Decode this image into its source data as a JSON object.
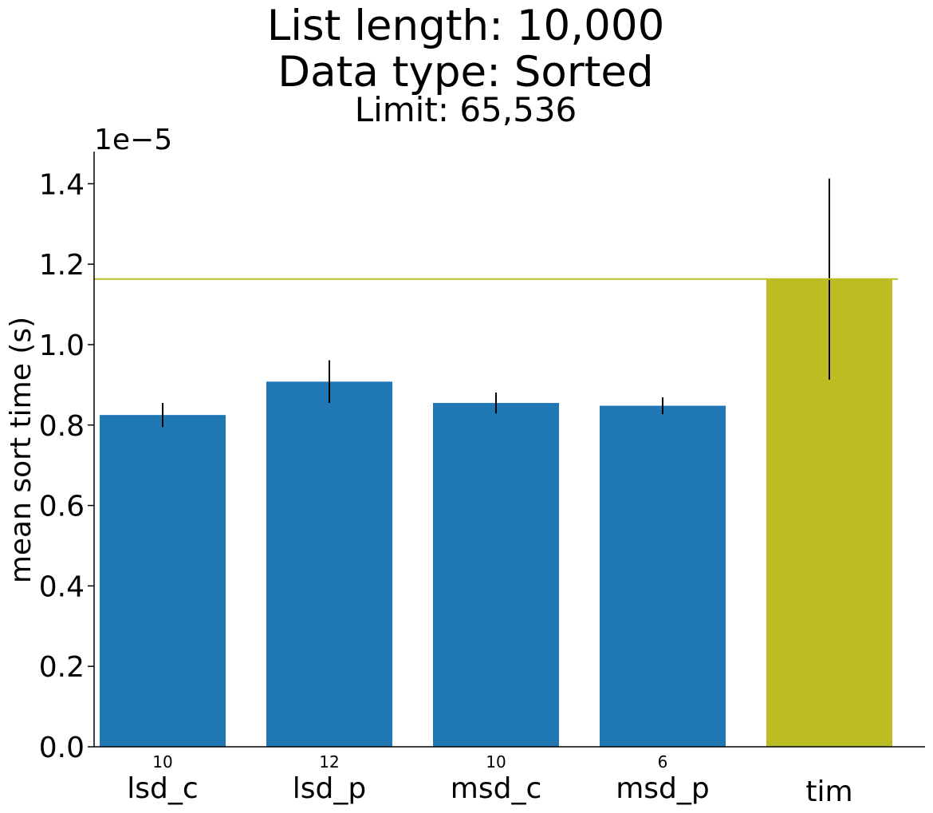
{
  "chart_data": {
    "type": "bar",
    "title_lines": [
      "List length: 10,000",
      "Data type: Sorted"
    ],
    "subtitle": "Limit: 65,536",
    "ylabel": "mean sort time (s)",
    "xlabel": "",
    "y_offset_label": "1e−5",
    "y_multiplier": 1e-05,
    "ylim": [
      0,
      1.48
    ],
    "yticks": [
      0.0,
      0.2,
      0.4,
      0.6,
      0.8,
      1.0,
      1.2,
      1.4
    ],
    "ytick_labels": [
      "0.0",
      "0.2",
      "0.4",
      "0.6",
      "0.8",
      "1.0",
      "1.2",
      "1.4"
    ],
    "categories": [
      "lsd_c",
      "lsd_p",
      "msd_c",
      "msd_p",
      "tim"
    ],
    "values": [
      0.825,
      0.908,
      0.855,
      0.848,
      1.163
    ],
    "errors": [
      0.03,
      0.053,
      0.026,
      0.021,
      0.25
    ],
    "bar_annotations": [
      "10",
      "12",
      "10",
      "6",
      ""
    ],
    "reference_line": 1.163,
    "grid": false,
    "legend": "none",
    "colors": {
      "default_bar": "#1f77b4",
      "highlight_bar": "#bcbd22",
      "reference_line": "#bcbd22",
      "error_bar": "#000000",
      "axis": "#000000"
    },
    "highlight_index": 4
  }
}
